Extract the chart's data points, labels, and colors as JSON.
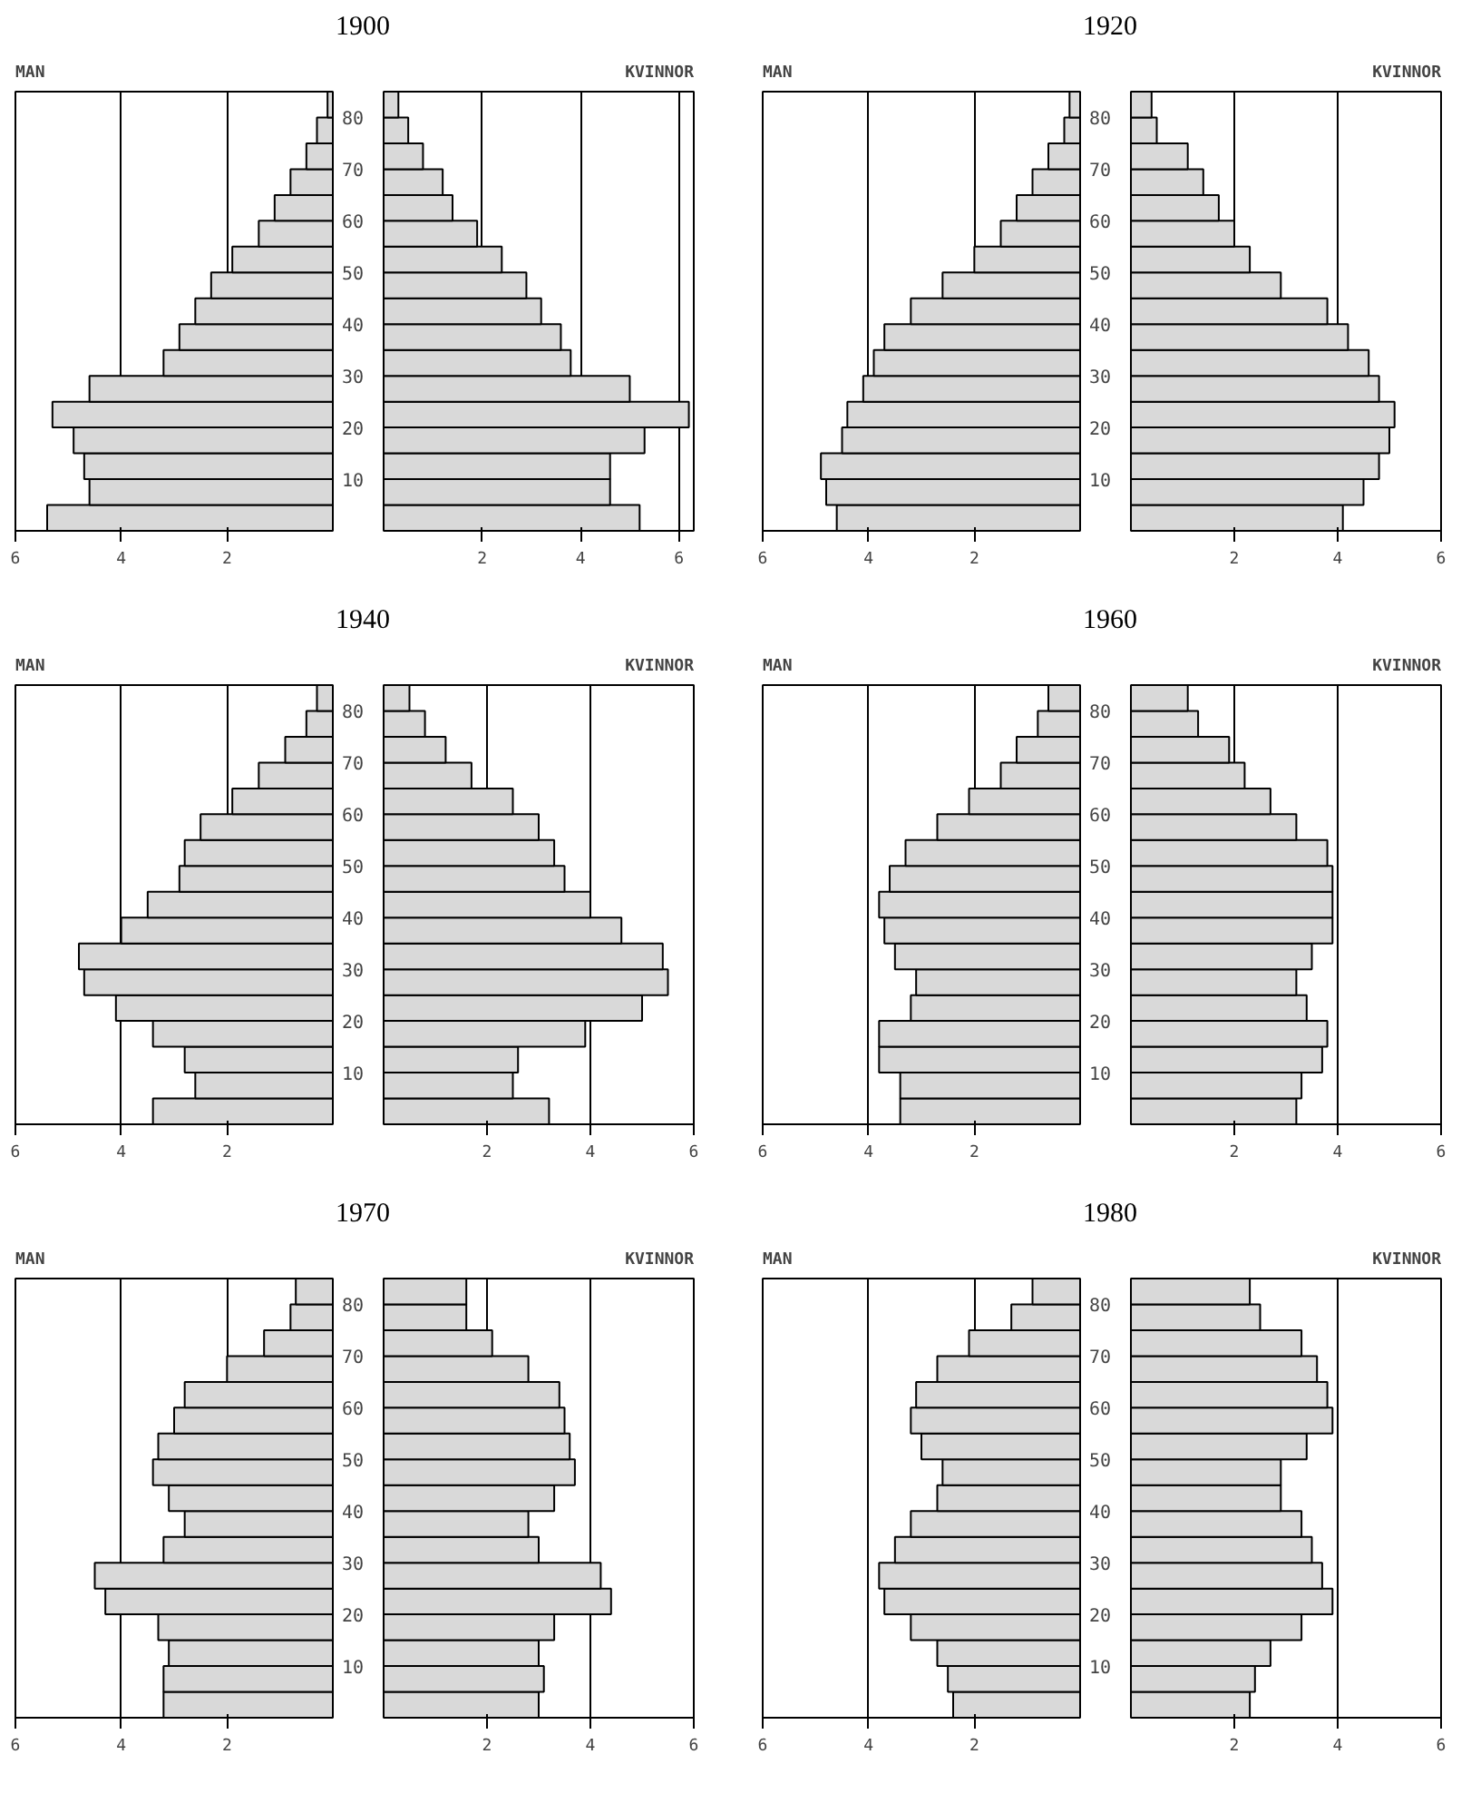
{
  "chart_data": [
    {
      "type": "bar",
      "orientation": "horizontal",
      "title": "1900",
      "x": [
        2.5,
        7.5,
        12.5,
        17.5,
        22.5,
        27.5,
        32.5,
        37.5,
        42.5,
        47.5,
        52.5,
        57.5,
        62.5,
        67.5,
        72.5,
        77.5,
        82.5
      ],
      "ylim": [
        0,
        85
      ],
      "yticks": [
        10,
        20,
        30,
        40,
        50,
        60,
        70,
        80
      ],
      "tick_labels": "x",
      "xlim": [
        6,
        0
      ],
      "xticks": [
        6,
        4,
        2
      ],
      "grid": "x",
      "series": [
        {
          "name": "MAN",
          "color": "#d9d9d9",
          "values": [
            5.4,
            4.6,
            4.7,
            4.9,
            5.3,
            4.6,
            3.2,
            2.9,
            2.6,
            2.3,
            1.9,
            1.4,
            1.1,
            0.8,
            0.5,
            0.3,
            0.1
          ]
        }
      ]
    },
    {
      "type": "bar",
      "orientation": "horizontal",
      "x": [
        2.5,
        7.5,
        12.5,
        17.5,
        22.5,
        27.5,
        32.5,
        37.5,
        42.5,
        47.5,
        52.5,
        57.5,
        62.5,
        67.5,
        72.5,
        77.5,
        82.5
      ],
      "ylim": [
        0,
        85
      ],
      "yticks": [
        10,
        20,
        30,
        40,
        50,
        60,
        70,
        80
      ],
      "xlim": [
        0,
        6.3
      ],
      "xticks": [
        2,
        4,
        6
      ],
      "grid": "x",
      "series": [
        {
          "name": "KVINNOR",
          "color": "#d9d9d9",
          "values": [
            5.2,
            4.6,
            4.6,
            5.3,
            6.2,
            5.0,
            3.8,
            3.6,
            3.2,
            2.9,
            2.4,
            1.9,
            1.4,
            1.2,
            0.8,
            0.5,
            0.3
          ]
        }
      ]
    },
    {
      "type": "bar",
      "orientation": "horizontal",
      "title": "1920",
      "x": [
        2.5,
        7.5,
        12.5,
        17.5,
        22.5,
        27.5,
        32.5,
        37.5,
        42.5,
        47.5,
        52.5,
        57.5,
        62.5,
        67.5,
        72.5,
        77.5,
        82.5
      ],
      "ylim": [
        0,
        85
      ],
      "yticks": [
        10,
        20,
        30,
        40,
        50,
        60,
        70,
        80
      ],
      "tick_labels": "x",
      "xlim": [
        6,
        0
      ],
      "xticks": [
        6,
        4,
        2
      ],
      "grid": "x",
      "series": [
        {
          "name": "MAN",
          "color": "#d9d9d9",
          "values": [
            4.6,
            4.8,
            4.9,
            4.5,
            4.4,
            4.1,
            3.9,
            3.7,
            3.2,
            2.6,
            2.0,
            1.5,
            1.2,
            0.9,
            0.6,
            0.3,
            0.2
          ]
        }
      ]
    },
    {
      "type": "bar",
      "orientation": "horizontal",
      "x": [
        2.5,
        7.5,
        12.5,
        17.5,
        22.5,
        27.5,
        32.5,
        37.5,
        42.5,
        47.5,
        52.5,
        57.5,
        62.5,
        67.5,
        72.5,
        77.5,
        82.5
      ],
      "ylim": [
        0,
        85
      ],
      "yticks": [
        10,
        20,
        30,
        40,
        50,
        60,
        70,
        80
      ],
      "xlim": [
        0,
        6
      ],
      "xticks": [
        2,
        4,
        6
      ],
      "grid": "x",
      "series": [
        {
          "name": "KVINNOR",
          "color": "#d9d9d9",
          "values": [
            4.1,
            4.5,
            4.8,
            5.0,
            5.1,
            4.8,
            4.6,
            4.2,
            3.8,
            2.9,
            2.3,
            2.0,
            1.7,
            1.4,
            1.1,
            0.5,
            0.4
          ]
        }
      ]
    },
    {
      "type": "bar",
      "orientation": "horizontal",
      "title": "1940",
      "x": [
        2.5,
        7.5,
        12.5,
        17.5,
        22.5,
        27.5,
        32.5,
        37.5,
        42.5,
        47.5,
        52.5,
        57.5,
        62.5,
        67.5,
        72.5,
        77.5,
        82.5
      ],
      "ylim": [
        0,
        85
      ],
      "yticks": [
        10,
        20,
        30,
        40,
        50,
        60,
        70,
        80
      ],
      "tick_labels": "x",
      "xlim": [
        6,
        0
      ],
      "xticks": [
        6,
        4,
        2
      ],
      "grid": "x",
      "series": [
        {
          "name": "MAN",
          "color": "#d9d9d9",
          "values": [
            3.4,
            2.6,
            2.8,
            3.4,
            4.1,
            4.7,
            4.8,
            4.0,
            3.5,
            2.9,
            2.8,
            2.5,
            1.9,
            1.4,
            0.9,
            0.5,
            0.3
          ]
        }
      ]
    },
    {
      "type": "bar",
      "orientation": "horizontal",
      "x": [
        2.5,
        7.5,
        12.5,
        17.5,
        22.5,
        27.5,
        32.5,
        37.5,
        42.5,
        47.5,
        52.5,
        57.5,
        62.5,
        67.5,
        72.5,
        77.5,
        82.5
      ],
      "ylim": [
        0,
        85
      ],
      "yticks": [
        10,
        20,
        30,
        40,
        50,
        60,
        70,
        80
      ],
      "xlim": [
        0,
        6
      ],
      "xticks": [
        2,
        4,
        6
      ],
      "grid": "x",
      "series": [
        {
          "name": "KVINNOR",
          "color": "#d9d9d9",
          "values": [
            3.2,
            2.5,
            2.6,
            3.9,
            5.0,
            5.5,
            5.4,
            4.6,
            4.0,
            3.5,
            3.3,
            3.0,
            2.5,
            1.7,
            1.2,
            0.8,
            0.5
          ]
        }
      ]
    },
    {
      "type": "bar",
      "orientation": "horizontal",
      "title": "1960",
      "x": [
        2.5,
        7.5,
        12.5,
        17.5,
        22.5,
        27.5,
        32.5,
        37.5,
        42.5,
        47.5,
        52.5,
        57.5,
        62.5,
        67.5,
        72.5,
        77.5,
        82.5
      ],
      "ylim": [
        0,
        85
      ],
      "yticks": [
        10,
        20,
        30,
        40,
        50,
        60,
        70,
        80
      ],
      "tick_labels": "x",
      "xlim": [
        6,
        0
      ],
      "xticks": [
        6,
        4,
        2
      ],
      "grid": "x",
      "series": [
        {
          "name": "MAN",
          "color": "#d9d9d9",
          "values": [
            3.4,
            3.4,
            3.8,
            3.8,
            3.2,
            3.1,
            3.5,
            3.7,
            3.8,
            3.6,
            3.3,
            2.7,
            2.1,
            1.5,
            1.2,
            0.8,
            0.6
          ]
        }
      ]
    },
    {
      "type": "bar",
      "orientation": "horizontal",
      "x": [
        2.5,
        7.5,
        12.5,
        17.5,
        22.5,
        27.5,
        32.5,
        37.5,
        42.5,
        47.5,
        52.5,
        57.5,
        62.5,
        67.5,
        72.5,
        77.5,
        82.5
      ],
      "ylim": [
        0,
        85
      ],
      "yticks": [
        10,
        20,
        30,
        40,
        50,
        60,
        70,
        80
      ],
      "xlim": [
        0,
        6
      ],
      "xticks": [
        2,
        4,
        6
      ],
      "grid": "x",
      "series": [
        {
          "name": "KVINNOR",
          "color": "#d9d9d9",
          "values": [
            3.2,
            3.3,
            3.7,
            3.8,
            3.4,
            3.2,
            3.5,
            3.9,
            3.9,
            3.9,
            3.8,
            3.2,
            2.7,
            2.2,
            1.9,
            1.3,
            1.1
          ]
        }
      ]
    },
    {
      "type": "bar",
      "orientation": "horizontal",
      "title": "1970",
      "x": [
        2.5,
        7.5,
        12.5,
        17.5,
        22.5,
        27.5,
        32.5,
        37.5,
        42.5,
        47.5,
        52.5,
        57.5,
        62.5,
        67.5,
        72.5,
        77.5,
        82.5
      ],
      "ylim": [
        0,
        85
      ],
      "yticks": [
        10,
        20,
        30,
        40,
        50,
        60,
        70,
        80
      ],
      "tick_labels": "x",
      "xlim": [
        6,
        0
      ],
      "xticks": [
        6,
        4,
        2
      ],
      "grid": "x",
      "series": [
        {
          "name": "MAN",
          "color": "#d9d9d9",
          "values": [
            3.2,
            3.2,
            3.1,
            3.3,
            4.3,
            4.5,
            3.2,
            2.8,
            3.1,
            3.4,
            3.3,
            3.0,
            2.8,
            2.0,
            1.3,
            0.8,
            0.7
          ]
        }
      ]
    },
    {
      "type": "bar",
      "orientation": "horizontal",
      "x": [
        2.5,
        7.5,
        12.5,
        17.5,
        22.5,
        27.5,
        32.5,
        37.5,
        42.5,
        47.5,
        52.5,
        57.5,
        62.5,
        67.5,
        72.5,
        77.5,
        82.5
      ],
      "ylim": [
        0,
        85
      ],
      "yticks": [
        10,
        20,
        30,
        40,
        50,
        60,
        70,
        80
      ],
      "xlim": [
        0,
        6
      ],
      "xticks": [
        2,
        4,
        6
      ],
      "grid": "x",
      "series": [
        {
          "name": "KVINNOR",
          "color": "#d9d9d9",
          "values": [
            3.0,
            3.1,
            3.0,
            3.3,
            4.4,
            4.2,
            3.0,
            2.8,
            3.3,
            3.7,
            3.6,
            3.5,
            3.4,
            2.8,
            2.1,
            1.6,
            1.6
          ]
        }
      ]
    },
    {
      "type": "bar",
      "orientation": "horizontal",
      "title": "1980",
      "x": [
        2.5,
        7.5,
        12.5,
        17.5,
        22.5,
        27.5,
        32.5,
        37.5,
        42.5,
        47.5,
        52.5,
        57.5,
        62.5,
        67.5,
        72.5,
        77.5,
        82.5
      ],
      "ylim": [
        0,
        85
      ],
      "yticks": [
        10,
        20,
        30,
        40,
        50,
        60,
        70,
        80
      ],
      "tick_labels": "x",
      "xlim": [
        6,
        0
      ],
      "xticks": [
        6,
        4,
        2
      ],
      "grid": "x",
      "series": [
        {
          "name": "MAN",
          "color": "#d9d9d9",
          "values": [
            2.4,
            2.5,
            2.7,
            3.2,
            3.7,
            3.8,
            3.5,
            3.2,
            2.7,
            2.6,
            3.0,
            3.2,
            3.1,
            2.7,
            2.1,
            1.3,
            0.9
          ]
        }
      ]
    },
    {
      "type": "bar",
      "orientation": "horizontal",
      "x": [
        2.5,
        7.5,
        12.5,
        17.5,
        22.5,
        27.5,
        32.5,
        37.5,
        42.5,
        47.5,
        52.5,
        57.5,
        62.5,
        67.5,
        72.5,
        77.5,
        82.5
      ],
      "ylim": [
        0,
        85
      ],
      "yticks": [
        10,
        20,
        30,
        40,
        50,
        60,
        70,
        80
      ],
      "xlim": [
        0,
        6
      ],
      "xticks": [
        2,
        4,
        6
      ],
      "grid": "x",
      "series": [
        {
          "name": "KVINNOR",
          "color": "#d9d9d9",
          "values": [
            2.3,
            2.4,
            2.7,
            3.3,
            3.9,
            3.7,
            3.5,
            3.3,
            2.9,
            2.9,
            3.4,
            3.9,
            3.8,
            3.6,
            3.3,
            2.5,
            2.3
          ]
        }
      ]
    }
  ]
}
